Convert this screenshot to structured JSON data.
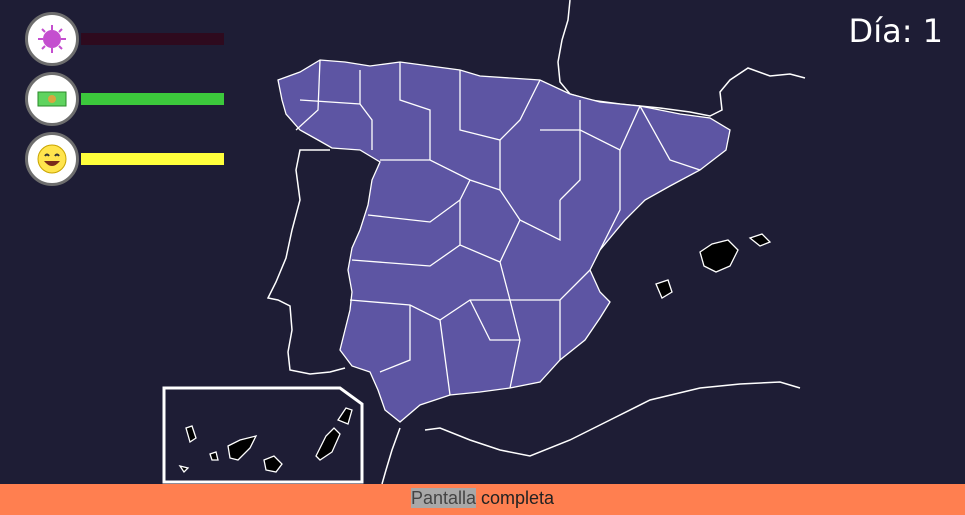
{
  "hud": {
    "stats": [
      {
        "icon": "virus-icon",
        "level": 0.0,
        "color": "#2e0a1e"
      },
      {
        "icon": "money-icon",
        "level": 1.0,
        "color": "#3cc83c"
      },
      {
        "icon": "happy-face-icon",
        "level": 1.0,
        "color": "#ffff3c"
      }
    ],
    "day_label": "Día: 1"
  },
  "map": {
    "region_color": "#5d55a3",
    "border_color": "#ffffff",
    "background_color": "#1e1d35"
  },
  "footer": {
    "fullscreen_word1": "Pantalla",
    "fullscreen_word2": " completa"
  }
}
